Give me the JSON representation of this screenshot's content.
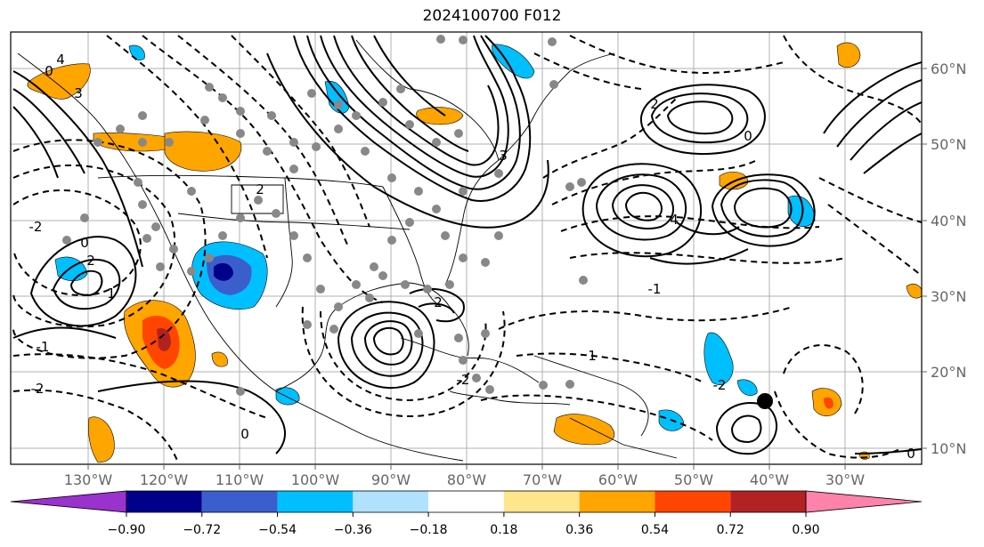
{
  "title": "2024100700 F012",
  "map": {
    "lon_labels": [
      "130°W",
      "120°W",
      "110°W",
      "100°W",
      "90°W",
      "80°W",
      "70°W",
      "60°W",
      "50°W",
      "40°W",
      "30°W"
    ],
    "lat_labels": [
      "60°N",
      "50°N",
      "40°N",
      "30°N",
      "20°N",
      "10°N"
    ],
    "contour_labels": [
      "2",
      "3",
      "4",
      "0",
      "-2",
      "1",
      "-1",
      "0",
      "2",
      "-2",
      "3",
      "4",
      "2",
      "0",
      "-1",
      "-2",
      "1",
      "0",
      "-2",
      "0",
      "2"
    ]
  },
  "colorbar": {
    "colors": [
      "#9a32cd",
      "#00008b",
      "#3a5fcd",
      "#00bfff",
      "#b0e2ff",
      "#ffffff",
      "#ffe68c",
      "#ffa500",
      "#ff4500",
      "#b22222",
      "#ff82ab"
    ],
    "ticks": [
      "−0.90",
      "−0.72",
      "−0.54",
      "−0.36",
      "−0.18",
      "0.18",
      "0.36",
      "0.54",
      "0.72",
      "0.90"
    ]
  }
}
